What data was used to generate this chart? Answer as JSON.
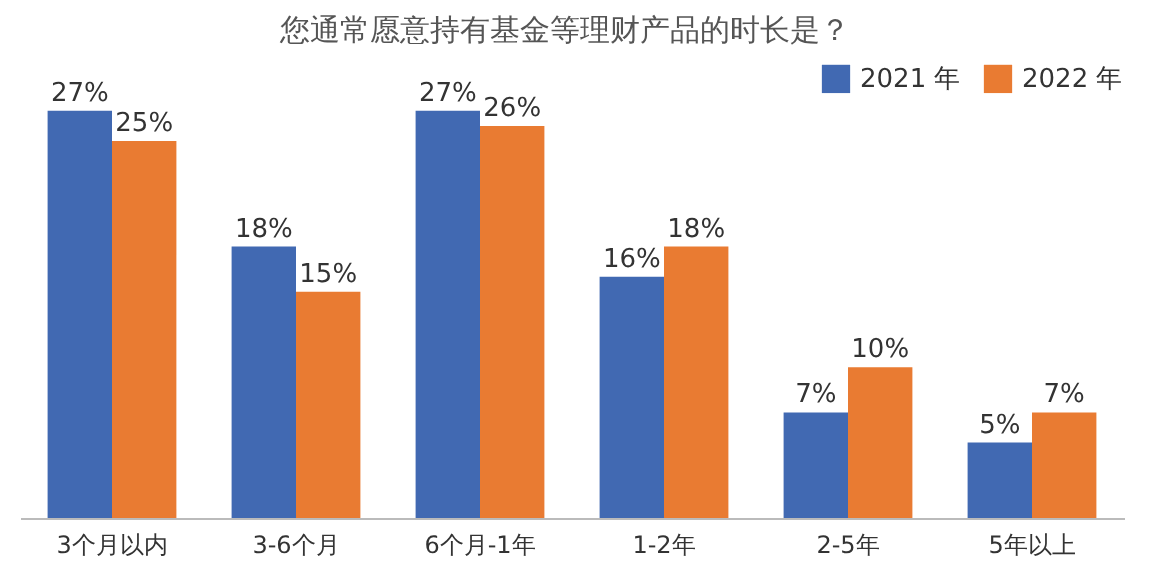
{
  "chart_data": {
    "type": "bar",
    "title": "您通常愿意持有基金等理财产品的时长是？",
    "categories": [
      "3个月以内",
      "3-6个月",
      "6个月-1年",
      "1-2年",
      "2-5年",
      "5年以上"
    ],
    "series": [
      {
        "name": "2021 年",
        "color": "#4169b2",
        "values": [
          27,
          18,
          27,
          16,
          7,
          5
        ],
        "value_labels": [
          "27%",
          "18%",
          "27%",
          "16%",
          "7%",
          "5%"
        ]
      },
      {
        "name": "2022 年",
        "color": "#e97b32",
        "values": [
          25,
          15,
          26,
          18,
          10,
          7
        ],
        "value_labels": [
          "25%",
          "15%",
          "26%",
          "18%",
          "10%",
          "7%"
        ]
      }
    ],
    "legend": "top right",
    "grid": false
  }
}
